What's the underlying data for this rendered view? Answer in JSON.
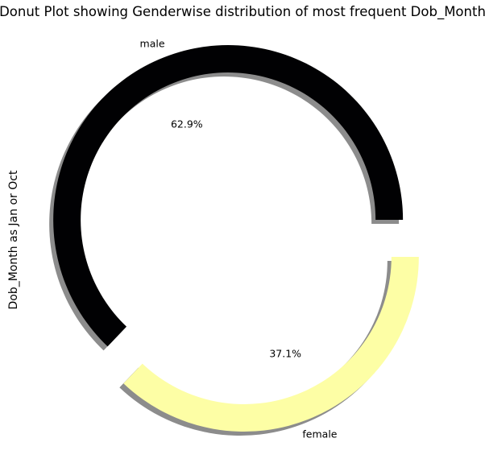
{
  "chart_data": {
    "type": "pie",
    "variant": "donut",
    "title": "Donut Plot showing Genderwise distribution of most frequent Dob_Month",
    "ylabel": "Dob_Month as Jan or Oct",
    "shadow": true,
    "exploded": true,
    "start_angle_deg": 0,
    "slices": [
      {
        "name": "male",
        "percent_label": "62.9%",
        "value": 62.9,
        "color": "#010103"
      },
      {
        "name": "female",
        "percent_label": "37.1%",
        "value": 37.1,
        "color": "#fdfea5"
      }
    ]
  }
}
